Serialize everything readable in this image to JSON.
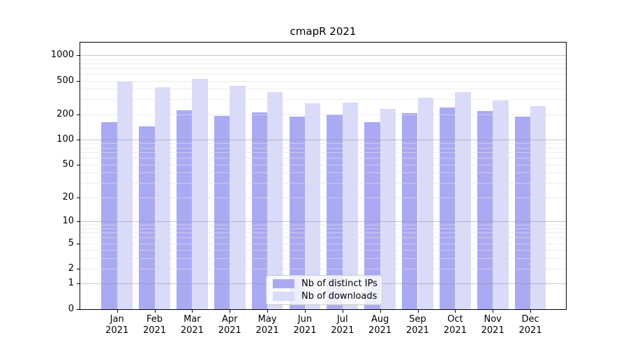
{
  "figure": {
    "title": "cmapR 2021",
    "background": "#ffffff",
    "axis_color": "#000000"
  },
  "legend": {
    "position": "lower-center",
    "items": [
      {
        "label": "Nb of distinct IPs",
        "color": "#aaaaf3"
      },
      {
        "label": "Nb of downloads",
        "color": "#dadaf9"
      }
    ]
  },
  "chart_data": {
    "type": "bar",
    "title": "cmapR 2021",
    "xlabel": "",
    "ylabel": "",
    "yscale": "log1p",
    "ylim": [
      0,
      1430
    ],
    "grid": "both",
    "y_ticks": [
      0,
      1,
      2,
      5,
      10,
      20,
      50,
      100,
      200,
      500,
      1000
    ],
    "y_minor_gridlines": [
      2,
      3,
      4,
      5,
      6,
      7,
      8,
      9,
      20,
      30,
      40,
      50,
      60,
      70,
      80,
      90,
      200,
      300,
      400,
      500,
      600,
      700,
      800,
      900
    ],
    "y_major_gridlines": [
      1,
      10,
      100,
      1000
    ],
    "categories": [
      "Jan 2021",
      "Feb 2021",
      "Mar 2021",
      "Apr 2021",
      "May 2021",
      "Jun 2021",
      "Jul 2021",
      "Aug 2021",
      "Sep 2021",
      "Oct 2021",
      "Nov 2021",
      "Dec 2021"
    ],
    "series": [
      {
        "name": "Nb of distinct IPs",
        "color": "#aaaaf3",
        "values": [
          162,
          143,
          222,
          190,
          209,
          188,
          198,
          160,
          208,
          239,
          219,
          189
        ]
      },
      {
        "name": "Nb of downloads",
        "color": "#dadaf9",
        "values": [
          487,
          420,
          520,
          437,
          362,
          267,
          272,
          232,
          311,
          368,
          292,
          248
        ]
      }
    ]
  }
}
